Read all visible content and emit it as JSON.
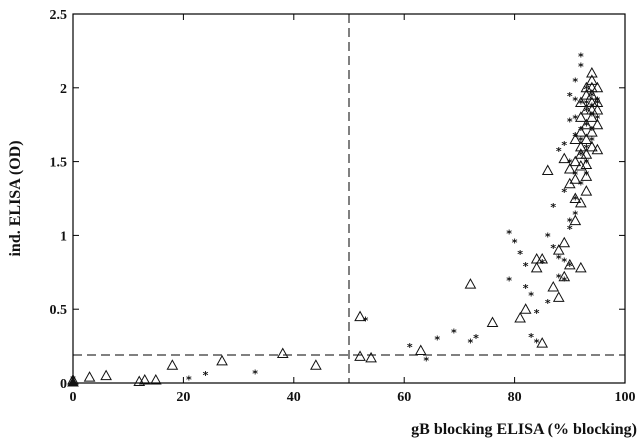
{
  "chart_data": {
    "type": "scatter",
    "xlabel": "gB blocking ELISA (% blocking)",
    "ylabel": "ind. ELISA (OD)",
    "xlim": [
      0,
      100
    ],
    "ylim": [
      0,
      2.5
    ],
    "x_ticks": [
      "0",
      "20",
      "40",
      "60",
      "80",
      "100"
    ],
    "y_ticks": [
      "0",
      "0.5",
      "1",
      "1.5",
      "2",
      "2.5"
    ],
    "grid": false,
    "cutoffs": {
      "x": 50,
      "y": 0.19
    },
    "series": [
      {
        "marker": "triangle",
        "points": [
          [
            0,
            0.02
          ],
          [
            3,
            0.04
          ],
          [
            6,
            0.05
          ],
          [
            12,
            0.01
          ],
          [
            13,
            0.02
          ],
          [
            15,
            0.02
          ],
          [
            18,
            0.12
          ],
          [
            27,
            0.15
          ],
          [
            38,
            0.2
          ],
          [
            44,
            0.12
          ],
          [
            52,
            0.45
          ],
          [
            52,
            0.18
          ],
          [
            54,
            0.17
          ],
          [
            63,
            0.22
          ],
          [
            72,
            0.67
          ],
          [
            76,
            0.41
          ],
          [
            81,
            0.44
          ],
          [
            82,
            0.5
          ],
          [
            84,
            0.78
          ],
          [
            84,
            0.84
          ],
          [
            85,
            0.27
          ],
          [
            85,
            0.84
          ],
          [
            86,
            1.44
          ],
          [
            87,
            0.65
          ],
          [
            88,
            0.58
          ],
          [
            88,
            0.9
          ],
          [
            89,
            0.95
          ],
          [
            89,
            0.72
          ],
          [
            89,
            1.52
          ],
          [
            90,
            1.35
          ],
          [
            90,
            1.45
          ],
          [
            90,
            0.8
          ],
          [
            91,
            1.5
          ],
          [
            91,
            1.65
          ],
          [
            91,
            1.1
          ],
          [
            91,
            1.25
          ],
          [
            91,
            1.38
          ],
          [
            92,
            1.55
          ],
          [
            92,
            1.6
          ],
          [
            92,
            1.7
          ],
          [
            92,
            1.8
          ],
          [
            92,
            1.9
          ],
          [
            92,
            1.22
          ],
          [
            92,
            1.47
          ],
          [
            92,
            0.78
          ],
          [
            93,
            1.65
          ],
          [
            93,
            1.75
          ],
          [
            93,
            1.85
          ],
          [
            93,
            1.95
          ],
          [
            93,
            1.4
          ],
          [
            93,
            1.55
          ],
          [
            93,
            2.0
          ],
          [
            93,
            1.3
          ],
          [
            93,
            1.48
          ],
          [
            94,
            1.7
          ],
          [
            94,
            1.8
          ],
          [
            94,
            1.9
          ],
          [
            94,
            2.0
          ],
          [
            94,
            2.05
          ],
          [
            94,
            1.6
          ],
          [
            94,
            1.85
          ],
          [
            94,
            1.95
          ],
          [
            94,
            2.1
          ],
          [
            95,
            1.75
          ],
          [
            95,
            1.9
          ],
          [
            95,
            2.0
          ],
          [
            95,
            1.85
          ],
          [
            95,
            1.58
          ]
        ]
      },
      {
        "marker": "star",
        "points": [
          [
            0,
            0.03
          ],
          [
            21,
            0.03
          ],
          [
            24,
            0.06
          ],
          [
            33,
            0.07
          ],
          [
            53,
            0.43
          ],
          [
            61,
            0.25
          ],
          [
            64,
            0.16
          ],
          [
            66,
            0.3
          ],
          [
            69,
            0.35
          ],
          [
            72,
            0.28
          ],
          [
            73,
            0.31
          ],
          [
            79,
            1.02
          ],
          [
            79,
            0.7
          ],
          [
            80,
            0.96
          ],
          [
            81,
            0.88
          ],
          [
            82,
            0.8
          ],
          [
            82,
            0.65
          ],
          [
            83,
            0.6
          ],
          [
            83,
            0.32
          ],
          [
            84,
            0.48
          ],
          [
            84,
            0.28
          ],
          [
            85,
            0.82
          ],
          [
            86,
            0.55
          ],
          [
            86,
            1.0
          ],
          [
            87,
            0.92
          ],
          [
            87,
            1.2
          ],
          [
            88,
            0.85
          ],
          [
            88,
            0.72
          ],
          [
            88,
            1.58
          ],
          [
            89,
            0.83
          ],
          [
            89,
            1.3
          ],
          [
            89,
            1.62
          ],
          [
            89,
            0.7
          ],
          [
            90,
            1.1
          ],
          [
            90,
            1.95
          ],
          [
            90,
            1.78
          ],
          [
            90,
            0.8
          ],
          [
            90,
            1.5
          ],
          [
            90,
            1.05
          ],
          [
            91,
            1.15
          ],
          [
            91,
            1.42
          ],
          [
            91,
            1.68
          ],
          [
            91,
            1.92
          ],
          [
            91,
            1.25
          ],
          [
            91,
            1.8
          ],
          [
            91,
            2.05
          ],
          [
            92,
            1.35
          ],
          [
            92,
            2.22
          ],
          [
            92,
            1.72
          ],
          [
            92,
            1.9
          ],
          [
            92,
            2.15
          ],
          [
            92,
            1.55
          ],
          [
            92,
            1.65
          ],
          [
            93,
            1.6
          ],
          [
            93,
            1.85
          ],
          [
            93,
            2.0
          ],
          [
            93,
            1.75
          ],
          [
            93,
            1.5
          ],
          [
            93,
            1.9
          ],
          [
            93,
            1.42
          ],
          [
            94,
            1.88
          ],
          [
            94,
            1.72
          ],
          [
            94,
            1.95
          ],
          [
            94,
            1.82
          ],
          [
            94,
            1.65
          ],
          [
            95,
            1.9
          ],
          [
            95,
            1.8
          ],
          [
            95,
            1.92
          ]
        ]
      }
    ]
  }
}
